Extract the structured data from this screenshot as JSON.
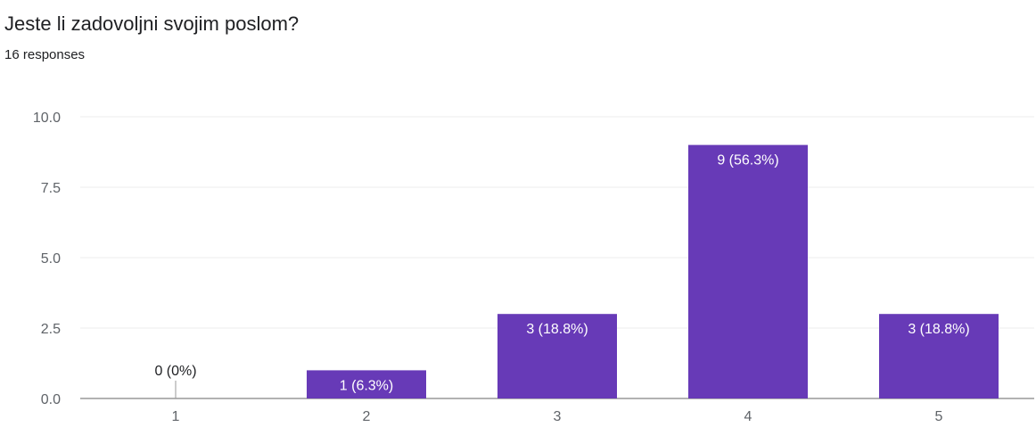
{
  "header": {
    "title": "Jeste li zadovoljni svojim poslom?",
    "subtitle": "16 responses"
  },
  "colors": {
    "bar": "#673ab7",
    "grid": "#eeeeee",
    "axis": "#999999"
  },
  "chart_data": {
    "type": "bar",
    "categories": [
      "1",
      "2",
      "3",
      "4",
      "5"
    ],
    "values": [
      0,
      1,
      3,
      9,
      3
    ],
    "labels": [
      "0 (0%)",
      "1 (6.3%)",
      "3 (18.8%)",
      "9 (56.3%)",
      "3 (18.8%)"
    ],
    "ylim": [
      0,
      10
    ],
    "yticks": [
      "0.0",
      "2.5",
      "5.0",
      "7.5",
      "10.0"
    ],
    "ytick_values": [
      0,
      2.5,
      5,
      7.5,
      10
    ],
    "grid": true,
    "legend": "none"
  }
}
